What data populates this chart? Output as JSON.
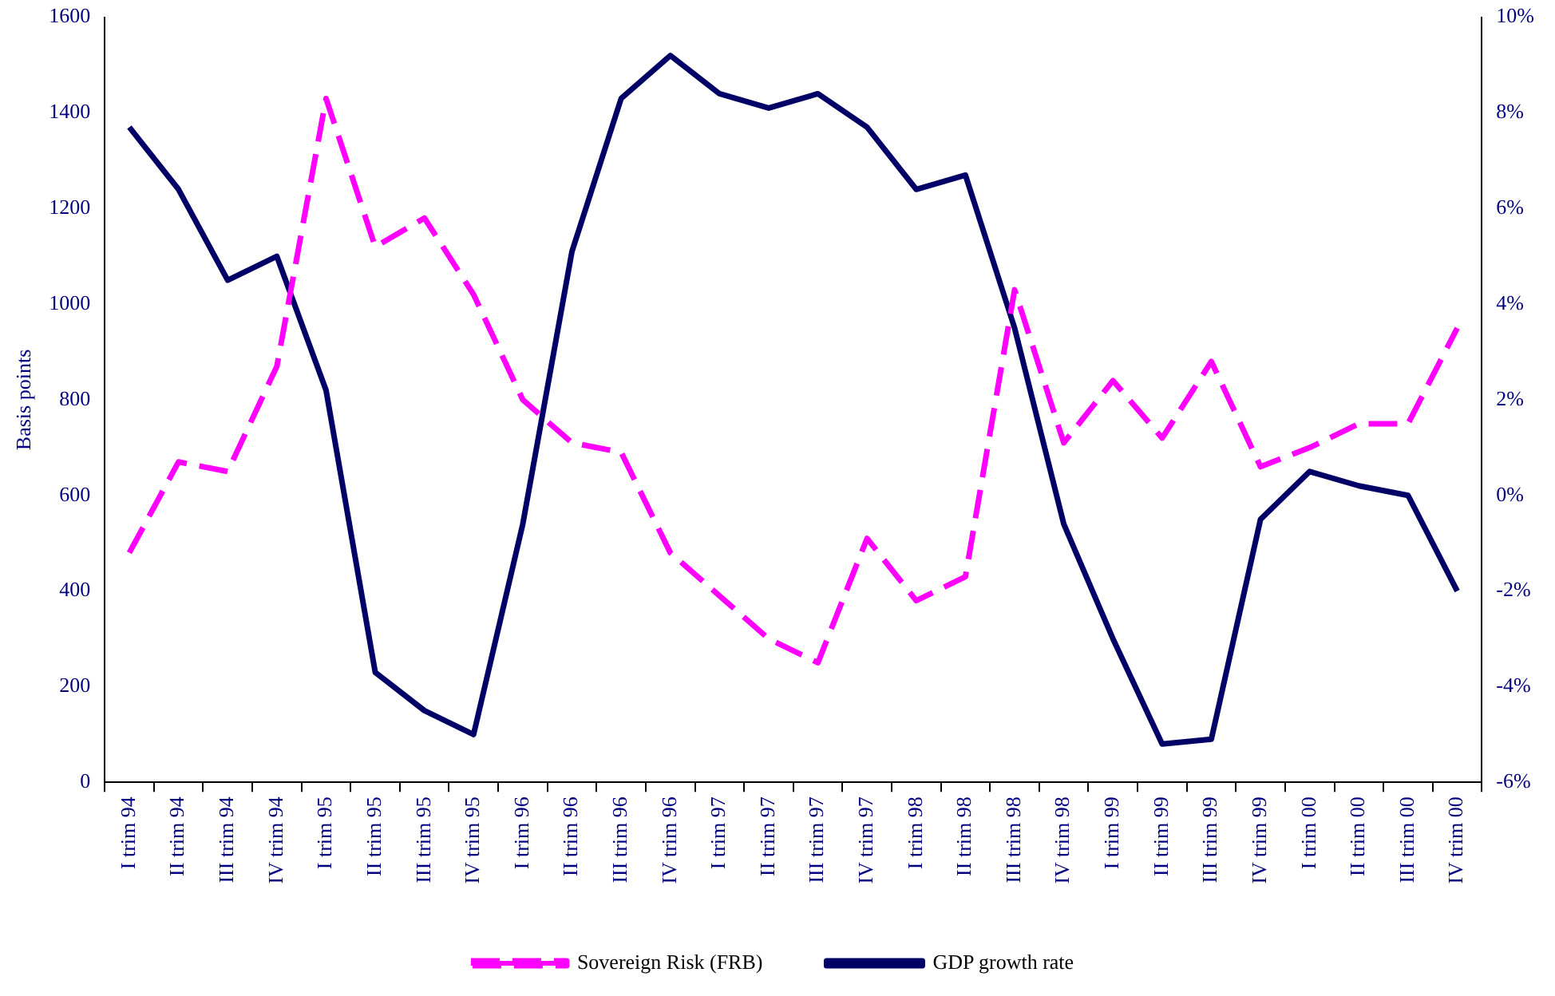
{
  "chart_data": {
    "type": "line",
    "ylabel": "Basis points",
    "categories": [
      "I trim 94",
      "II trim 94",
      "III trim 94",
      "IV trim 94",
      "I trim 95",
      "II trim 95",
      "III trim 95",
      "IV trim 95",
      "I trim 96",
      "II trim 96",
      "III trim 96",
      "IV trim 96",
      "I trim 97",
      "II trim 97",
      "III trim 97",
      "IV trim 97",
      "I trim 98",
      "II trim 98",
      "III trim 98",
      "IV trim 98",
      "I trim 99",
      "II trim 99",
      "III trim 99",
      "IV trim 99",
      "I trim 00",
      "II trim 00",
      "III trim 00",
      "IV trim 00"
    ],
    "series": [
      {
        "name": "Sovereign Risk (FRB)",
        "color": "#ff00ff",
        "line_style": "dashed",
        "values": [
          480,
          670,
          650,
          870,
          1430,
          1120,
          1180,
          1020,
          800,
          710,
          690,
          480,
          390,
          300,
          250,
          510,
          380,
          430,
          1030,
          710,
          840,
          720,
          880,
          660,
          700,
          750,
          750,
          950
        ]
      },
      {
        "name": "GDP growth rate",
        "color": "#000066",
        "line_style": "solid",
        "axis": "y2",
        "values": [
          7.7,
          6.4,
          4.5,
          5.0,
          2.2,
          -3.7,
          -4.5,
          -5.0,
          -0.6,
          5.1,
          8.3,
          9.2,
          8.4,
          8.1,
          8.4,
          7.7,
          6.4,
          6.7,
          3.5,
          -0.6,
          -3.0,
          -5.2,
          -5.1,
          -0.5,
          0.5,
          0.2,
          0.0,
          -2.0
        ]
      }
    ],
    "ylim": [
      0,
      1600
    ],
    "yticks": [
      0,
      200,
      400,
      600,
      800,
      1000,
      1200,
      1400,
      1600
    ],
    "y2lim": [
      -6,
      10
    ],
    "y2ticks": [
      {
        "value": -6,
        "label": "-6%"
      },
      {
        "value": -4,
        "label": "-4%"
      },
      {
        "value": -2,
        "label": "-2%"
      },
      {
        "value": 0,
        "label": "0%"
      },
      {
        "value": 2,
        "label": "2%"
      },
      {
        "value": 4,
        "label": "4%"
      },
      {
        "value": 6,
        "label": "6%"
      },
      {
        "value": 8,
        "label": "8%"
      },
      {
        "value": 10,
        "label": "10%"
      }
    ],
    "grid": false,
    "legend": "bottom",
    "marker": "none"
  }
}
